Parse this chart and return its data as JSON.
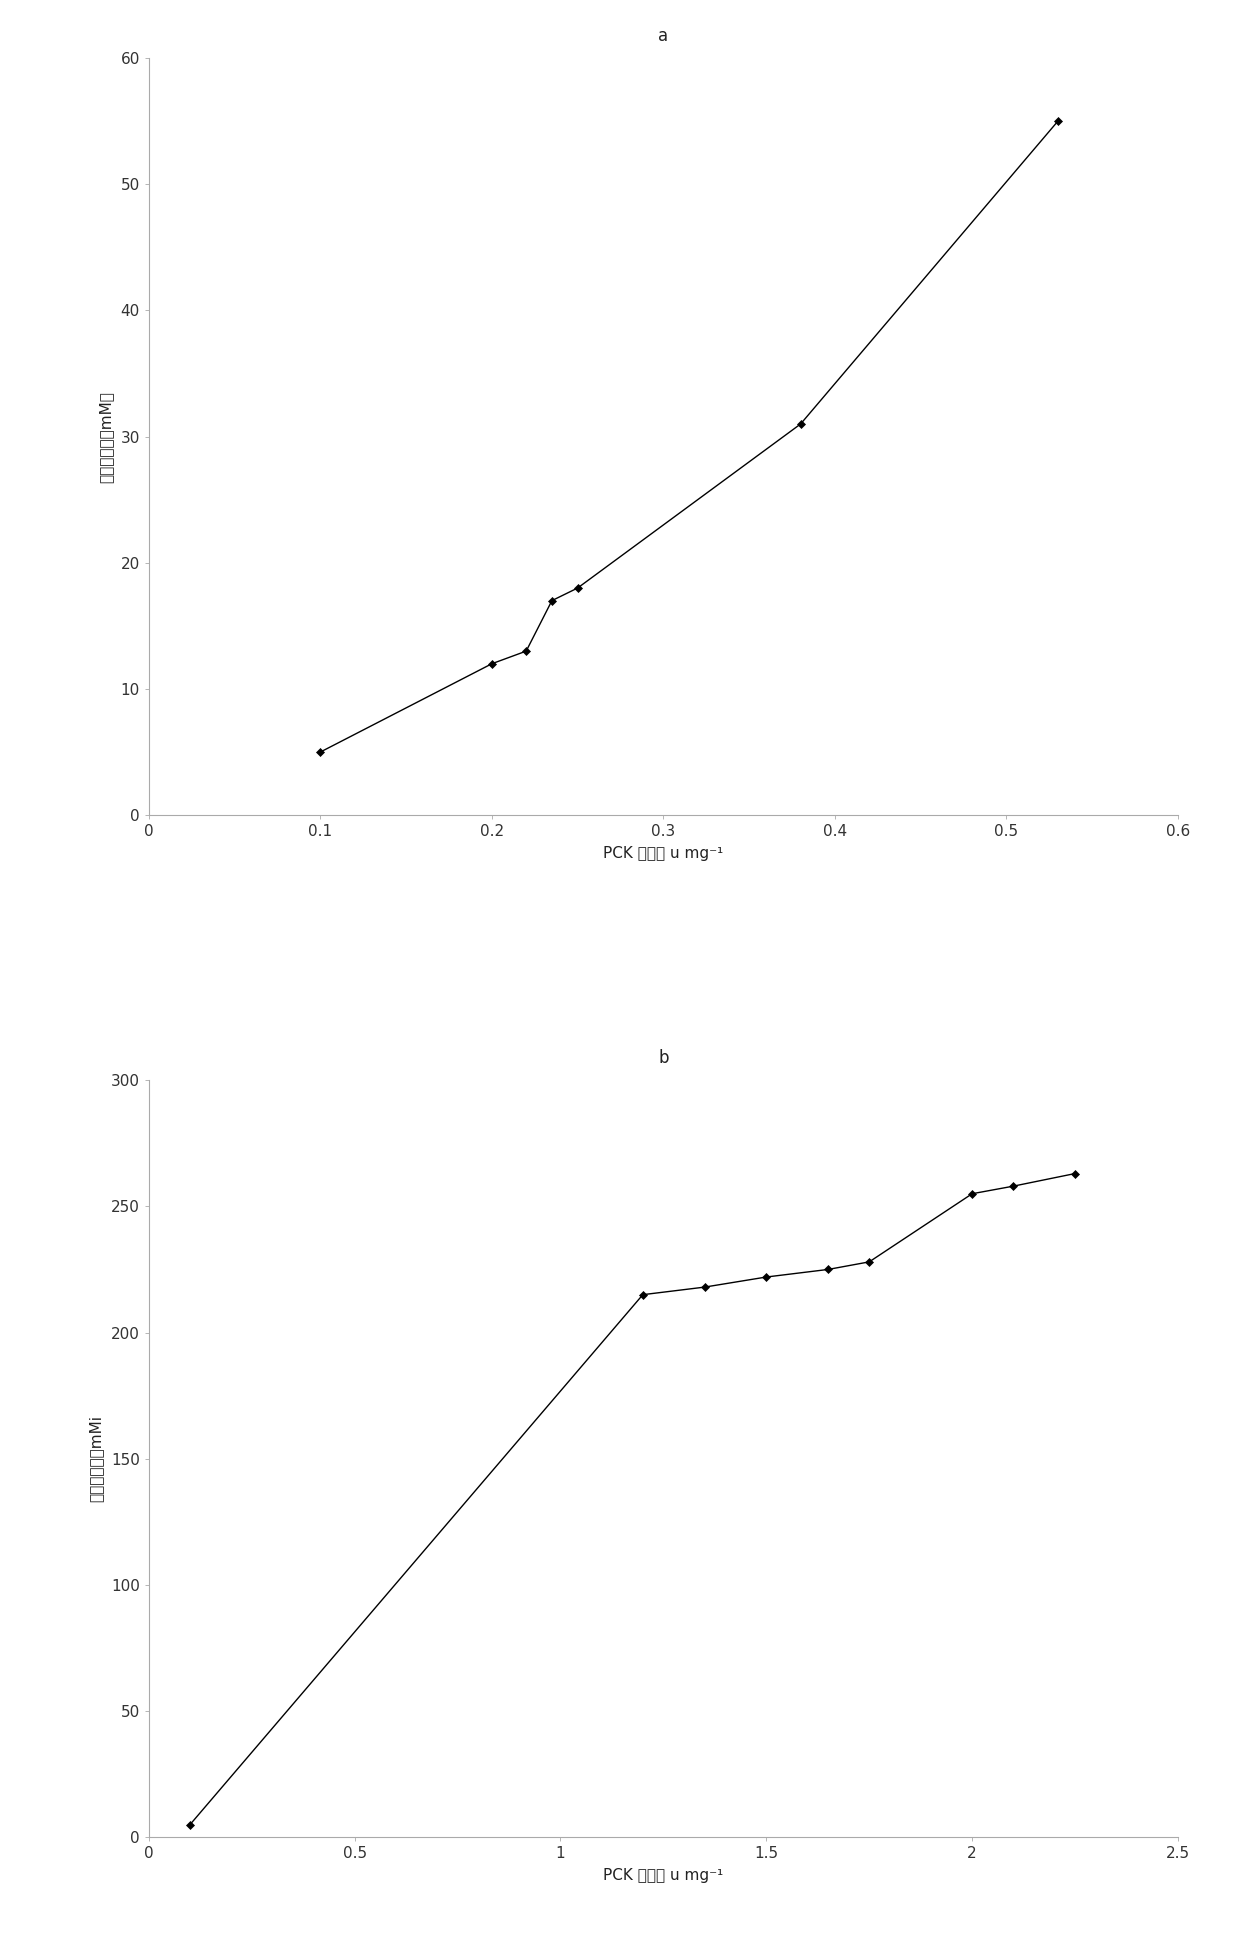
{
  "chart_a": {
    "title": "a",
    "x": [
      0.1,
      0.2,
      0.22,
      0.235,
      0.25,
      0.38,
      0.53
    ],
    "y": [
      5,
      12,
      13,
      17,
      18,
      31,
      55
    ],
    "xlabel": "PCK 酶活／ u mg⁻¹",
    "ylabel": "丁二酸产量（mM）",
    "xlim": [
      0,
      0.6
    ],
    "ylim": [
      0,
      60
    ],
    "xticks": [
      0,
      0.1,
      0.2,
      0.3,
      0.4,
      0.5,
      0.6
    ],
    "xtick_labels": [
      "0",
      "0.1",
      "0.2",
      "0.3",
      "0.4",
      "0.5",
      "0.6"
    ],
    "yticks": [
      0,
      10,
      20,
      30,
      40,
      50,
      60
    ],
    "ytick_labels": [
      "0",
      "10",
      "20",
      "30",
      "40",
      "50",
      "60"
    ]
  },
  "chart_b": {
    "title": "b",
    "x": [
      0.1,
      1.2,
      1.35,
      1.5,
      1.65,
      1.75,
      2.0,
      2.1,
      2.25
    ],
    "y": [
      5,
      215,
      218,
      222,
      225,
      228,
      255,
      258,
      263
    ],
    "xlabel": "PCK 酶活／ u mg⁻¹",
    "ylabel": "丁二酸产量（mMi",
    "xlim": [
      0,
      2.5
    ],
    "ylim": [
      0,
      300
    ],
    "xticks": [
      0,
      0.5,
      1.0,
      1.5,
      2.0,
      2.5
    ],
    "xtick_labels": [
      "0",
      "0.5",
      "1",
      "1.5",
      "2",
      "2.5"
    ],
    "yticks": [
      0,
      50,
      100,
      150,
      200,
      250,
      300
    ],
    "ytick_labels": [
      "0",
      "50",
      "100",
      "150",
      "200",
      "250",
      "300"
    ]
  },
  "line_color": "#000000",
  "marker": "D",
  "marker_size": 4,
  "marker_color": "#000000",
  "bg_color": "#ffffff",
  "fig_width": 12.4,
  "fig_height": 19.34,
  "title_fontsize": 12,
  "label_fontsize": 11,
  "tick_fontsize": 11
}
